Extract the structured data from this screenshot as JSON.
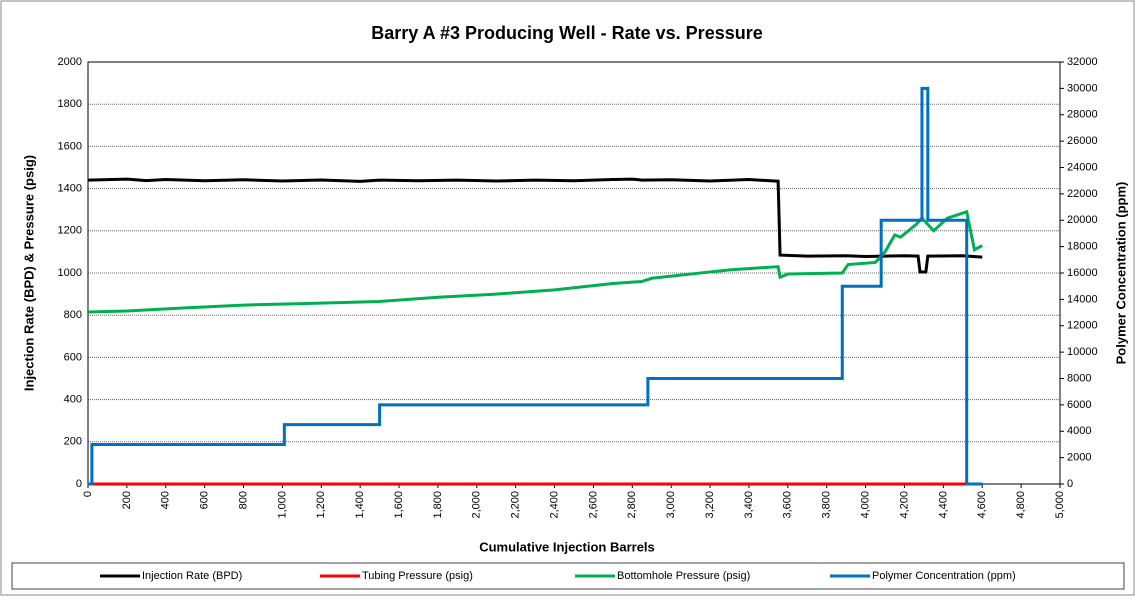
{
  "chart_data": {
    "type": "line",
    "title": "Barry A #3 Producing Well - Rate vs. Pressure",
    "x_label": "Cumulative Injection Barrels",
    "y_label": "Injection Rate (BPD) & Pressure (psig)",
    "y2_label": "Polymer Concentration (ppm)",
    "xlim": [
      0,
      5000
    ],
    "xticks": [
      0,
      200,
      400,
      600,
      800,
      {
        "value": 1000,
        "label": "1,000"
      },
      {
        "value": 1200,
        "label": "1,200"
      },
      {
        "value": 1400,
        "label": "1,400"
      },
      {
        "value": 1600,
        "label": "1,600"
      },
      {
        "value": 1800,
        "label": "1,800"
      },
      {
        "value": 2000,
        "label": "2,000"
      },
      {
        "value": 2200,
        "label": "2,200"
      },
      {
        "value": 2400,
        "label": "2,400"
      },
      {
        "value": 2600,
        "label": "2,600"
      },
      {
        "value": 2800,
        "label": "2,800"
      },
      {
        "value": 3000,
        "label": "3,000"
      },
      {
        "value": 3200,
        "label": "3,200"
      },
      {
        "value": 3400,
        "label": "3,400"
      },
      {
        "value": 3600,
        "label": "3,600"
      },
      {
        "value": 3800,
        "label": "3,800"
      },
      {
        "value": 4000,
        "label": "4,000"
      },
      {
        "value": 4200,
        "label": "4,200"
      },
      {
        "value": 4400,
        "label": "4,400"
      },
      {
        "value": 4600,
        "label": "4,600"
      },
      {
        "value": 4800,
        "label": "4,800"
      },
      {
        "value": 5000,
        "label": "5,000"
      }
    ],
    "ylim": [
      0,
      2000
    ],
    "yticks": [
      0,
      200,
      400,
      600,
      800,
      1000,
      1200,
      1400,
      1600,
      1800,
      2000
    ],
    "y2lim": [
      0,
      32000
    ],
    "y2ticks": [
      0,
      2000,
      4000,
      6000,
      8000,
      10000,
      12000,
      14000,
      16000,
      18000,
      20000,
      22000,
      24000,
      26000,
      28000,
      30000,
      32000
    ],
    "grid": true,
    "legend": "bottom",
    "series": [
      {
        "name": "Injection Rate (BPD)",
        "color": "#000000",
        "x": [
          0,
          200,
          300,
          400,
          600,
          800,
          1000,
          1200,
          1400,
          1500,
          1700,
          1900,
          2100,
          2300,
          2500,
          2700,
          2800,
          2850,
          3000,
          3200,
          3400,
          3550,
          3560,
          3700,
          3900,
          4000,
          4200,
          4270,
          4280,
          4310,
          4320,
          4500,
          4600
        ],
        "values": [
          1440,
          1445,
          1438,
          1443,
          1437,
          1442,
          1436,
          1441,
          1434,
          1440,
          1437,
          1440,
          1436,
          1440,
          1437,
          1443,
          1445,
          1440,
          1442,
          1436,
          1443,
          1435,
          1085,
          1080,
          1082,
          1078,
          1082,
          1080,
          1005,
          1005,
          1080,
          1082,
          1075
        ]
      },
      {
        "name": "Tubing Pressure (psig)",
        "color": "#ff0000",
        "x": [
          0,
          4600
        ],
        "values": [
          0,
          0
        ]
      },
      {
        "name": "Bottomhole Pressure (psig)",
        "color": "#00b050",
        "x": [
          0,
          200,
          500,
          800,
          1100,
          1500,
          1800,
          2100,
          2400,
          2700,
          2850,
          2900,
          3100,
          3300,
          3550,
          3560,
          3600,
          3880,
          3910,
          4050,
          4100,
          4150,
          4180,
          4260,
          4290,
          4350,
          4420,
          4520,
          4560,
          4600
        ],
        "values": [
          815,
          820,
          835,
          848,
          855,
          865,
          885,
          900,
          920,
          950,
          960,
          975,
          995,
          1015,
          1030,
          980,
          995,
          1000,
          1040,
          1050,
          1100,
          1180,
          1170,
          1230,
          1260,
          1200,
          1260,
          1290,
          1110,
          1130
        ]
      },
      {
        "name": "Polymer Concentration (ppm)",
        "color": "#0070c0",
        "axis": "y2",
        "x": [
          0,
          20,
          20,
          1010,
          1010,
          1500,
          1500,
          2880,
          2880,
          3880,
          3880,
          4080,
          4080,
          4290,
          4290,
          4320,
          4320,
          4520,
          4520,
          4600
        ],
        "values": [
          0,
          0,
          3000,
          3000,
          4500,
          4500,
          6000,
          6000,
          8000,
          8000,
          15000,
          15000,
          20000,
          20000,
          30000,
          30000,
          20000,
          20000,
          0,
          0
        ]
      }
    ]
  }
}
